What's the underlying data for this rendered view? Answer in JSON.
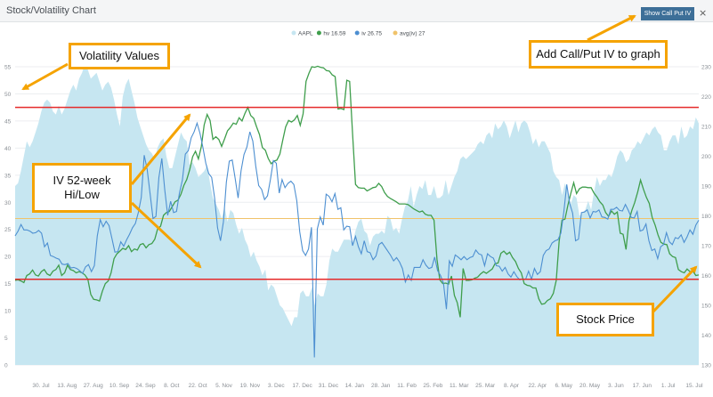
{
  "window": {
    "title": "Stock/Volatility Chart",
    "close_symbol": "×"
  },
  "toolbar": {
    "show_iv_label": "Show Call Put IV"
  },
  "legend": {
    "items": [
      {
        "label": "AAPL",
        "color": "#c6e6f1"
      },
      {
        "label": "hv 16.59",
        "color": "#3f9e4c"
      },
      {
        "label": "iv 26.75",
        "color": "#4d8fd1"
      },
      {
        "label": "avg(iv) 27",
        "color": "#f0c36a"
      }
    ]
  },
  "callouts": {
    "volatility_values": "Volatility Values",
    "iv_hilo_line1": "IV 52-week",
    "iv_hilo_line2": "Hi/Low",
    "add_iv": "Add Call/Put IV to graph",
    "stock_price": "Stock Price"
  },
  "colors": {
    "accent_button": "#3d6f98",
    "callout_border": "#f5a300",
    "hilo_line": "#e52a2a"
  },
  "chart_data": {
    "type": "line",
    "x_ticks": [
      "30. Jul",
      "13. Aug",
      "27. Aug",
      "10. Sep",
      "24. Sep",
      "8. Oct",
      "22. Oct",
      "5. Nov",
      "19. Nov",
      "3. Dec",
      "17. Dec",
      "31. Dec",
      "14. Jan",
      "28. Jan",
      "11. Feb",
      "25. Feb",
      "11. Mar",
      "25. Mar",
      "8. Apr",
      "22. Apr",
      "6. May",
      "20. May",
      "3. Jun",
      "17. Jun",
      "1. Jul",
      "15. Jul"
    ],
    "y_left": {
      "ticks": [
        0,
        5,
        10,
        15,
        20,
        25,
        30,
        35,
        40,
        45,
        50,
        55
      ]
    },
    "y_right": {
      "ticks": [
        130,
        140,
        150,
        160,
        170,
        180,
        190,
        200,
        210,
        220,
        230
      ]
    },
    "hilines": [
      47.5,
      15.8
    ],
    "avg_iv": 27,
    "price": {
      "name": "AAPL",
      "values": [
        190,
        191,
        195,
        200,
        205,
        203,
        205,
        208,
        211,
        215,
        218,
        219,
        218,
        215,
        214,
        217,
        214,
        216,
        219,
        222,
        224,
        222,
        226,
        228,
        231,
        229,
        226,
        227,
        228,
        225,
        222,
        224,
        225,
        223,
        219,
        214,
        210,
        220,
        224,
        226,
        222,
        218,
        213,
        210,
        207,
        204,
        202,
        201,
        199,
        203,
        205,
        206,
        200,
        196,
        196,
        200,
        204,
        208,
        206,
        205,
        197,
        198,
        196,
        193,
        194,
        195,
        197,
        191,
        186,
        184,
        182,
        179,
        183,
        178,
        182,
        181,
        177,
        174,
        176,
        172,
        170,
        166,
        168,
        165,
        163,
        160,
        162,
        155,
        157,
        156,
        153,
        150,
        149,
        147,
        145,
        143,
        146,
        146,
        154,
        155,
        153,
        153,
        156,
        150,
        154,
        153,
        153,
        157,
        165,
        169,
        168,
        168,
        170,
        172,
        172,
        172,
        171,
        175,
        178,
        179,
        175,
        174,
        170,
        173,
        174,
        174,
        175,
        174,
        180,
        179,
        175,
        176,
        174,
        179,
        183,
        185,
        190,
        183,
        187,
        190,
        189,
        192,
        187,
        187,
        190,
        186,
        186,
        187,
        192,
        187,
        190,
        193,
        195,
        199,
        200,
        199,
        200,
        201,
        202,
        204,
        205,
        204,
        207,
        208,
        206,
        211,
        209,
        210,
        212,
        210,
        206,
        209,
        212,
        208,
        211,
        212,
        211,
        208,
        204,
        206,
        203,
        205,
        205,
        203,
        201,
        195,
        193,
        192,
        187,
        191,
        188,
        184,
        187,
        186,
        180,
        181,
        182,
        185,
        182,
        188,
        193,
        190,
        192,
        192,
        194,
        193,
        196,
        200,
        202,
        201,
        198,
        199,
        202,
        203,
        205,
        204,
        206,
        208,
        207,
        209,
        210,
        208,
        207,
        202,
        202,
        205,
        207,
        207,
        204,
        210,
        206,
        207,
        210,
        209,
        213,
        211
      ]
    },
    "hv": {
      "name": "hv",
      "values": [
        15.6,
        15.7,
        15.5,
        15.2,
        16.5,
        16.8,
        17.5,
        16.6,
        16.4,
        17.2,
        17.6,
        16.8,
        16.5,
        17.3,
        17.6,
        18.4,
        16.5,
        17.0,
        18.4,
        17.6,
        17.4,
        17.0,
        17.2,
        17.0,
        16.6,
        15.8,
        13.0,
        12.1,
        12.0,
        11.8,
        13.6,
        15.0,
        15.5,
        17.0,
        19.6,
        20.5,
        21.0,
        21.5,
        21.3,
        22.0,
        20.9,
        21.4,
        21.2,
        22.2,
        22.4,
        21.6,
        22.2,
        22.4,
        23.2,
        25.1,
        25.6,
        27.6,
        28.1,
        28.3,
        29.2,
        30.1,
        30.4,
        31.5,
        33.1,
        34.2,
        36.0,
        38.4,
        39.4,
        38.0,
        40.3,
        44.3,
        46.2,
        45.1,
        41.6,
        42.1,
        41.6,
        40.3,
        41.7,
        43.2,
        43.8,
        44.6,
        44.4,
        45.6,
        45.0,
        46.4,
        47.5,
        46.0,
        45.5,
        43.9,
        42.5,
        40.1,
        39.6,
        38.1,
        37.1,
        37.6,
        37.8,
        38.9,
        41.5,
        43.9,
        45.1,
        44.8,
        45.2,
        46.0,
        44.2,
        46.3,
        52.3,
        53.8,
        55.0,
        54.9,
        55.1,
        54.9,
        54.8,
        54.3,
        54.2,
        53.5,
        53.2,
        47.2,
        47.3,
        47.1,
        52.5,
        52.3,
        42.6,
        33.3,
        32.7,
        32.6,
        32.6,
        32.1,
        32.4,
        32.7,
        32.8,
        33.5,
        32.9,
        31.8,
        31.1,
        30.7,
        30.4,
        30.1,
        29.7,
        29.7,
        29.7,
        29.6,
        29.2,
        28.8,
        28.5,
        28.2,
        28.4,
        27.8,
        27.6,
        27.6,
        26.7,
        19.5,
        15.7,
        15.0,
        15.1,
        14.9,
        16.4,
        12.8,
        11.5,
        8.8,
        17.8,
        15.6,
        15.6,
        15.7,
        16.0,
        16.2,
        16.8,
        17.2,
        16.9,
        17.3,
        17.7,
        18.7,
        18.8,
        20.6,
        21.0,
        20.4,
        20.8,
        19.8,
        19.1,
        17.8,
        17.0,
        15.0,
        14.7,
        14.6,
        14.2,
        14.2,
        12.2,
        11.2,
        11.3,
        11.9,
        12.2,
        13.2,
        15.6,
        22.7,
        26.7,
        26.9,
        29.4,
        31.6,
        33.6,
        31.6,
        32.5,
        32.8,
        32.8,
        32.7,
        32.7,
        31.7,
        31.0,
        30.1,
        29.5,
        28.1,
        27.4,
        28.4,
        27.8,
        28.2,
        24.3,
        24.1,
        21.3,
        26.6,
        28.5,
        30.0,
        31.9,
        34.1,
        32.4,
        30.9,
        29.8,
        27.2,
        25.8,
        24.0,
        22.6,
        22.3,
        22.2,
        20.5,
        20.0,
        19.8,
        17.6,
        17.2,
        17.0,
        17.7,
        17.2,
        17.3,
        16.5,
        16.6
      ]
    },
    "iv": {
      "name": "iv",
      "values": [
        23.8,
        24.7,
        25.9,
        24.9,
        24.9,
        24.7,
        24.3,
        24.4,
        24.8,
        24.3,
        21.8,
        22.5,
        20.2,
        20.0,
        19.7,
        19.5,
        18.6,
        18.5,
        18.7,
        17.9,
        18.0,
        17.8,
        17.4,
        16.9,
        18.1,
        18.5,
        17.2,
        18.3,
        23.8,
        26.8,
        25.5,
        26.5,
        25.7,
        23.3,
        20.8,
        20.9,
        22.7,
        21.9,
        23.1,
        24.1,
        25.3,
        26.1,
        28.1,
        30.9,
        38.7,
        36.1,
        31.6,
        27.0,
        27.4,
        34.6,
        38.1,
        32.3,
        27.6,
        30.2,
        28.1,
        28.3,
        31.7,
        34.1,
        38.9,
        39.5,
        41.9,
        43.0,
        44.6,
        42.7,
        40.1,
        37.2,
        35.3,
        34.6,
        30.8,
        25.3,
        22.9,
        26.4,
        33.7,
        37.6,
        37.8,
        34.4,
        30.8,
        35.8,
        38.8,
        40.2,
        43.0,
        41.3,
        36.7,
        33.1,
        32.4,
        30.5,
        31.2,
        34.2,
        37.7,
        37.2,
        31.7,
        34.2,
        32.7,
        33.5,
        33.9,
        33.3,
        30.3,
        24.6,
        21.1,
        20.2,
        21.4,
        25.4,
        1.4,
        25.1,
        27.3,
        25.8,
        31.5,
        31.1,
        30.1,
        31.6,
        28.7,
        29.0,
        24.9,
        25.6,
        25.5,
        22.0,
        23.7,
        21.8,
        20.5,
        22.9,
        20.9,
        20.7,
        19.4,
        20.1,
        22.2,
        22.6,
        21.8,
        21.0,
        20.2,
        19.2,
        19.8,
        19.0,
        17.8,
        15.3,
        16.6,
        15.6,
        18.0,
        18.0,
        18.0,
        19.4,
        18.4,
        17.8,
        18.0,
        19.9,
        17.4,
        16.5,
        15.1,
        10.3,
        19.2,
        18.2,
        20.3,
        19.9,
        19.4,
        20.0,
        19.4,
        19.8,
        20.0,
        21.2,
        20.5,
        20.3,
        18.3,
        20.5,
        20.0,
        19.7,
        18.3,
        18.2,
        17.3,
        18.0,
        16.8,
        16.2,
        17.2,
        16.3,
        15.7,
        15.9,
        15.8,
        17.3,
        15.8,
        17.8,
        16.7,
        17.2,
        20.2,
        21.1,
        21.4,
        22.5,
        22.9,
        23.1,
        24.3,
        28.2,
        33.3,
        29.8,
        28.0,
        22.9,
        23.2,
        28.1,
        28.2,
        28.6,
        27.1,
        28.3,
        28.2,
        28.6,
        27.3,
        27.2,
        26.9,
        28.7,
        28.7,
        29.1,
        28.5,
        28.4,
        29.6,
        28.5,
        27.2,
        27.1,
        28.3,
        24.7,
        24.9,
        26.0,
        22.9,
        21.1,
        21.4,
        19.6,
        21.8,
        22.2,
        24.4,
        22.7,
        22.2,
        23.5,
        23.3,
        24.0,
        22.6,
        23.6,
        24.9,
        24.1,
        25.8,
        26.7
      ]
    }
  }
}
